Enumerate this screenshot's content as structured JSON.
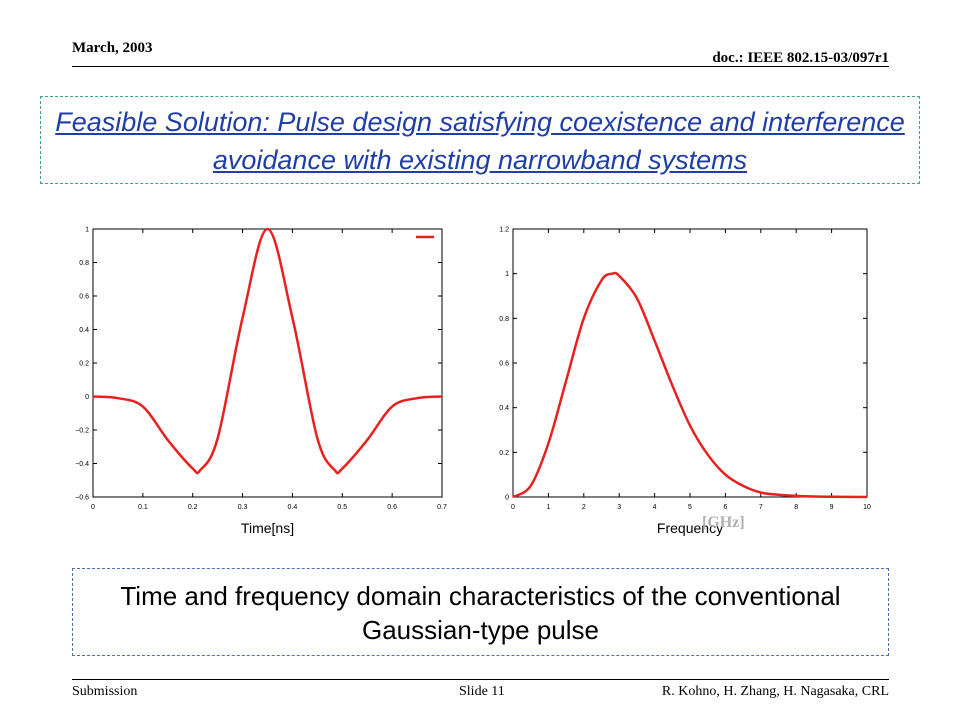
{
  "header": {
    "date": "March, 2003",
    "doc": "doc.: IEEE 802.15-03/097r1"
  },
  "title": "Feasible Solution: Pulse design satisfying coexistence and interference avoidance with existing narrowband systems",
  "chart_data": [
    {
      "type": "line",
      "xlabel": "Time[ns]",
      "ylabel": "",
      "xlim": [
        0,
        0.7
      ],
      "ylim": [
        -0.6,
        1
      ],
      "xticks": [
        "0",
        "0.1",
        "0.2",
        "0.3",
        "0.4",
        "0.5",
        "0.6",
        "0.7"
      ],
      "yticks": [
        "1",
        "0.8",
        "0.6",
        "0.4",
        "0.2",
        "0",
        "−0.2",
        "−0.4",
        "−0.6"
      ],
      "grid": false,
      "legend": "top-right (line sample only)",
      "color": "#e8211f",
      "x": [
        0,
        0.05,
        0.1,
        0.15,
        0.2,
        0.215,
        0.25,
        0.3,
        0.35,
        0.4,
        0.45,
        0.485,
        0.5,
        0.55,
        0.6,
        0.65,
        0.7
      ],
      "y": [
        0,
        -0.01,
        -0.06,
        -0.26,
        -0.43,
        -0.44,
        -0.25,
        0.47,
        1.0,
        0.47,
        -0.25,
        -0.44,
        -0.43,
        -0.26,
        -0.06,
        -0.01,
        0
      ]
    },
    {
      "type": "line",
      "xlabel": "Frequency",
      "ylabel": "",
      "xlim": [
        0,
        10
      ],
      "ylim": [
        0,
        1.2
      ],
      "xticks": [
        "0",
        "1",
        "2",
        "3",
        "4",
        "5",
        "6",
        "7",
        "8",
        "9",
        "10"
      ],
      "yticks": [
        "1.2",
        "1",
        "0.8",
        "0.6",
        "0.4",
        "0.2",
        "0"
      ],
      "grid": false,
      "color": "#e8211f",
      "x": [
        0,
        0.5,
        1,
        1.5,
        2,
        2.5,
        2.8,
        3,
        3.5,
        4,
        4.5,
        5,
        5.5,
        6,
        6.5,
        7,
        7.5,
        8,
        8.5,
        9,
        10
      ],
      "y": [
        0,
        0.05,
        0.24,
        0.52,
        0.8,
        0.97,
        1.0,
        0.99,
        0.89,
        0.7,
        0.5,
        0.32,
        0.19,
        0.1,
        0.05,
        0.02,
        0.01,
        0.005,
        0.002,
        0.001,
        0
      ]
    }
  ],
  "freq_unit": "[GHz]",
  "caption": "Time and frequency domain characteristics of the conventional Gaussian-type pulse",
  "footer": {
    "left": "Submission",
    "center": "Slide 11",
    "right": "R. Kohno, H. Zhang, H. Nagasaka, CRL"
  }
}
